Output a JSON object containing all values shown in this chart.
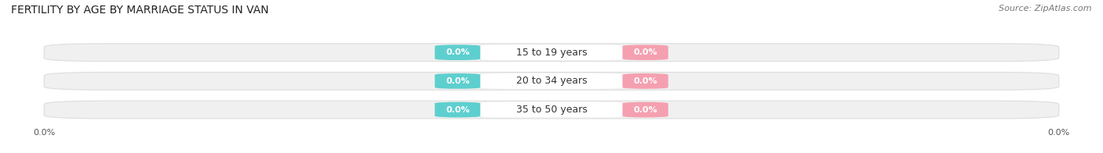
{
  "title": "FERTILITY BY AGE BY MARRIAGE STATUS IN VAN",
  "source": "Source: ZipAtlas.com",
  "categories": [
    "15 to 19 years",
    "20 to 34 years",
    "35 to 50 years"
  ],
  "married_values": [
    0.0,
    0.0,
    0.0
  ],
  "unmarried_values": [
    0.0,
    0.0,
    0.0
  ],
  "married_color": "#5ECFCF",
  "unmarried_color": "#F4A0B0",
  "bar_fill_color": "#F0F0F0",
  "bar_edge_color": "#DDDDDD",
  "center_fill_color": "#FFFFFF",
  "title_fontsize": 10,
  "source_fontsize": 8,
  "label_fontsize": 8,
  "cat_fontsize": 9,
  "legend_fontsize": 8.5,
  "tick_fontsize": 8,
  "background_color": "#FFFFFF"
}
